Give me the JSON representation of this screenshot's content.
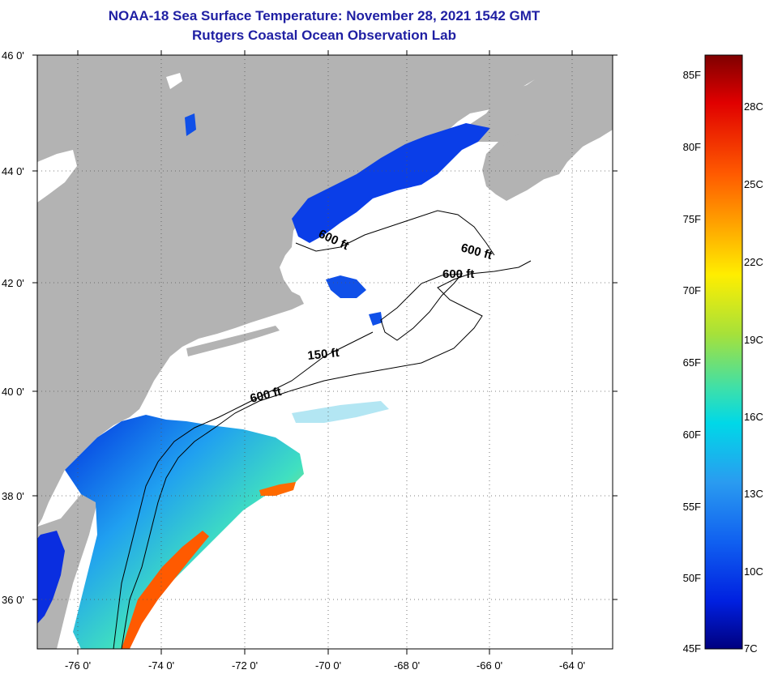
{
  "title": {
    "line1": "NOAA-18 Sea Surface Temperature:  November 28, 2021 1542 GMT",
    "line2": "Rutgers Coastal Ocean Observation Lab"
  },
  "axes": {
    "lon_ticks": [
      "-76 0'",
      "-74 0'",
      "-72 0'",
      "-70 0'",
      "-68 0'",
      "-66 0'",
      "-64 0'"
    ],
    "lat_ticks": [
      "46 0'",
      "44 0'",
      "42 0'",
      "40 0'",
      "38 0'",
      "36 0'"
    ]
  },
  "isobaths": [
    "600 ft",
    "600 ft",
    "600 ft",
    "150 ft",
    "600 ft"
  ],
  "colorbar": {
    "fahrenheit": [
      "85F",
      "80F",
      "75F",
      "70F",
      "65F",
      "60F",
      "55F",
      "50F",
      "45F"
    ],
    "celsius": [
      "28C",
      "25C",
      "22C",
      "19C",
      "16C",
      "13C",
      "10C",
      "7C"
    ],
    "colors": [
      "#7f0000",
      "#e00000",
      "#ff5a00",
      "#ffb000",
      "#ffee00",
      "#a6e13a",
      "#3fe0a8",
      "#00d8e8",
      "#2a9bf0",
      "#1060f0",
      "#0020e0",
      "#00007f"
    ]
  },
  "colors": {
    "land": "#b3b3b3",
    "ocean_nodata": "#ffffff",
    "title": "#1f1fa3"
  }
}
